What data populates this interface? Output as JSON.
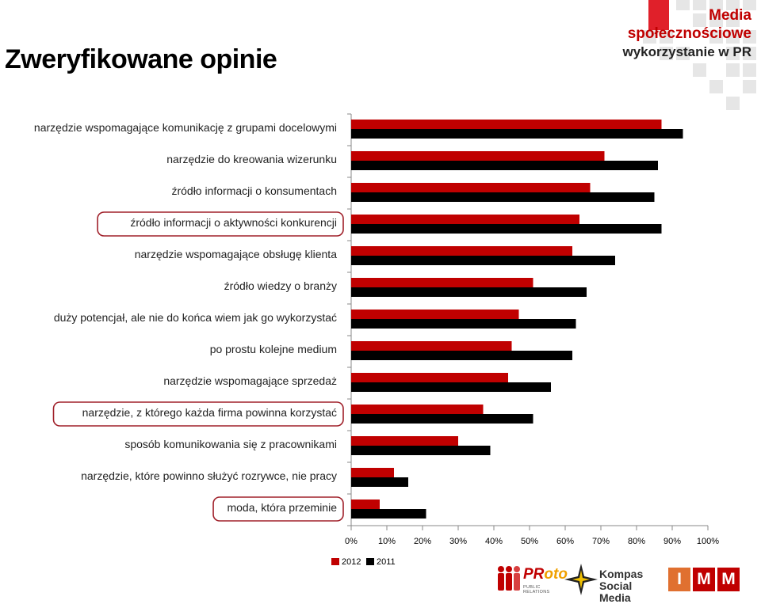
{
  "header": {
    "title": "Zweryfikowane opinie",
    "brand_line1": "Media",
    "brand_line2": "społecznościowe",
    "brand_line3": "wykorzystanie w PR"
  },
  "colors": {
    "series_2012": "#c00000",
    "series_2011": "#000000",
    "highlight_outline": "#a0202a",
    "deco_squares": "#e6e6e6",
    "deco_red": "#e0202a"
  },
  "chart_data": {
    "type": "bar",
    "orientation": "horizontal",
    "categories": [
      "narzędzie wspomagające komunikację z grupami docelowymi",
      "narzędzie do kreowania wizerunku",
      "źródło informacji o konsumentach",
      "źródło informacji o aktywności konkurencji",
      "narzędzie wspomagające obsługę klienta",
      "źródło wiedzy o branży",
      "duży potencjał, ale nie do końca wiem jak go wykorzystać",
      "po prostu kolejne medium",
      "narzędzie wspomagające sprzedaż",
      "narzędzie, z którego każda firma powinna korzystać",
      "sposób komunikowania się z pracownikami",
      "narzędzie, które powinno służyć rozrywce, nie pracy",
      "moda, która przeminie"
    ],
    "highlighted": [
      "źródło informacji o aktywności konkurencji",
      "narzędzie, z którego każda firma powinna korzystać",
      "moda, która przeminie"
    ],
    "series": [
      {
        "name": "2012",
        "values": [
          87,
          71,
          67,
          64,
          62,
          51,
          47,
          45,
          44,
          37,
          30,
          12,
          8
        ]
      },
      {
        "name": "2011",
        "values": [
          93,
          86,
          85,
          87,
          74,
          66,
          63,
          62,
          56,
          51,
          39,
          16,
          21
        ]
      }
    ],
    "xlim": [
      0,
      100
    ],
    "xticks": [
      "0%",
      "10%",
      "20%",
      "30%",
      "40%",
      "50%",
      "60%",
      "70%",
      "80%",
      "90%",
      "100%"
    ],
    "legend": {
      "position": "bottom",
      "labels": [
        "2012",
        "2011"
      ]
    },
    "grid": false
  },
  "footer": {
    "logo1_text_a": "PR",
    "logo1_text_b": "oto",
    "logo1_sub": "PUBLIC RELATIONS",
    "logo2_line1": "Kompas",
    "logo2_line2": "Social Media",
    "logo3_letters": [
      "I",
      "M",
      "M"
    ]
  }
}
